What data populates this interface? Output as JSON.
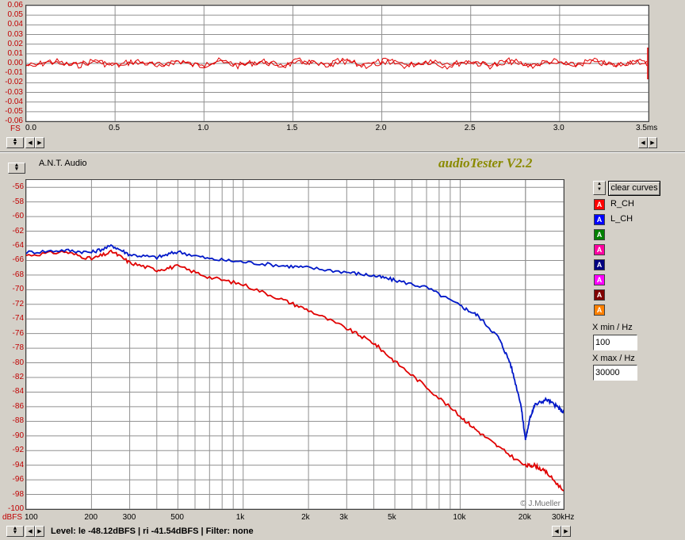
{
  "scope": {
    "y_ticks": [
      "0.06",
      "0.05",
      "0.04",
      "0.03",
      "0.02",
      "0.01",
      "0.00",
      "-0.01",
      "-0.02",
      "-0.03",
      "-0.04",
      "-0.05",
      "-0.06"
    ],
    "y_unit": "FS",
    "x_ticks": [
      "0.0",
      "0.5",
      "1.0",
      "1.5",
      "2.0",
      "2.5",
      "3.0"
    ],
    "x_last": "3.5ms",
    "color": "#e00000"
  },
  "header": {
    "company": "A.N.T. Audio",
    "app_title": "audioTester V2.2"
  },
  "chart_data": {
    "type": "line",
    "xscale": "log",
    "xlim": [
      100,
      30000
    ],
    "ylim": [
      -100,
      -55
    ],
    "y_ticks": [
      "-56",
      "-58",
      "-60",
      "-62",
      "-64",
      "-66",
      "-68",
      "-70",
      "-72",
      "-74",
      "-76",
      "-78",
      "-80",
      "-82",
      "-84",
      "-86",
      "-88",
      "-90",
      "-92",
      "-94",
      "-96",
      "-98",
      "-100"
    ],
    "y_unit": "dBFS",
    "x_ticks": [
      {
        "v": 100,
        "t": "100"
      },
      {
        "v": 200,
        "t": "200"
      },
      {
        "v": 300,
        "t": "300"
      },
      {
        "v": 500,
        "t": "500"
      },
      {
        "v": 1000,
        "t": "1k"
      },
      {
        "v": 2000,
        "t": "2k"
      },
      {
        "v": 3000,
        "t": "3k"
      },
      {
        "v": 5000,
        "t": "5k"
      },
      {
        "v": 10000,
        "t": "10k"
      },
      {
        "v": 20000,
        "t": "20k"
      },
      {
        "v": 30000,
        "t": "30kHz"
      }
    ],
    "series": [
      {
        "name": "R_CH",
        "color": "#e00000",
        "x": [
          100,
          150,
          200,
          250,
          300,
          400,
          500,
          700,
          1000,
          1500,
          2000,
          3000,
          4000,
          5000,
          7000,
          10000,
          12000,
          15000,
          20000,
          22000,
          25000,
          30000
        ],
        "y": [
          -65.3,
          -64.8,
          -65.8,
          -64.8,
          -66.3,
          -67.3,
          -66.8,
          -68.3,
          -69.3,
          -71.3,
          -72.8,
          -75.3,
          -77.3,
          -79.8,
          -83.3,
          -87.3,
          -89.3,
          -91.5,
          -94.1,
          -94.0,
          -95.0,
          -97.5
        ]
      },
      {
        "name": "L_CH",
        "color": "#0018c8",
        "x": [
          100,
          150,
          200,
          250,
          300,
          400,
          500,
          700,
          1000,
          1500,
          2000,
          3000,
          4000,
          5000,
          7000,
          10000,
          12000,
          15000,
          17000,
          19000,
          20000,
          21000,
          22000,
          25000,
          28000,
          30000
        ],
        "y": [
          -64.9,
          -64.6,
          -64.9,
          -64.0,
          -65.2,
          -65.6,
          -64.8,
          -65.8,
          -66.2,
          -66.7,
          -67.0,
          -67.6,
          -68.1,
          -68.7,
          -69.7,
          -72.2,
          -73.5,
          -76.5,
          -80.0,
          -85.5,
          -90.5,
          -87.5,
          -85.8,
          -85.0,
          -86.0,
          -86.8
        ]
      }
    ]
  },
  "controls": {
    "clear_curves": "clear curves",
    "curves": [
      {
        "label": "R_CH",
        "color": "#ff0000",
        "chip": "A"
      },
      {
        "label": "L_CH",
        "color": "#0000ff",
        "chip": "A"
      },
      {
        "label": "",
        "color": "#008000",
        "chip": "A"
      },
      {
        "label": "",
        "color": "#ff00a0",
        "chip": "A"
      },
      {
        "label": "",
        "color": "#000080",
        "chip": "A"
      },
      {
        "label": "",
        "color": "#ff00ff",
        "chip": "A"
      },
      {
        "label": "",
        "color": "#800000",
        "chip": "A"
      },
      {
        "label": "",
        "color": "#ff8000",
        "chip": "A"
      }
    ],
    "xmin_label": "X min / Hz",
    "xmin_value": "100",
    "xmax_label": "X max / Hz",
    "xmax_value": "30000"
  },
  "watermark": "© J.Mueller",
  "status": {
    "text": "Level: le -48.12dBFS | ri -41.54dBFS | Filter: none"
  },
  "icons": {
    "spin": "spin-updown-icon",
    "left": "arrow-left-icon",
    "right": "arrow-right-icon"
  }
}
